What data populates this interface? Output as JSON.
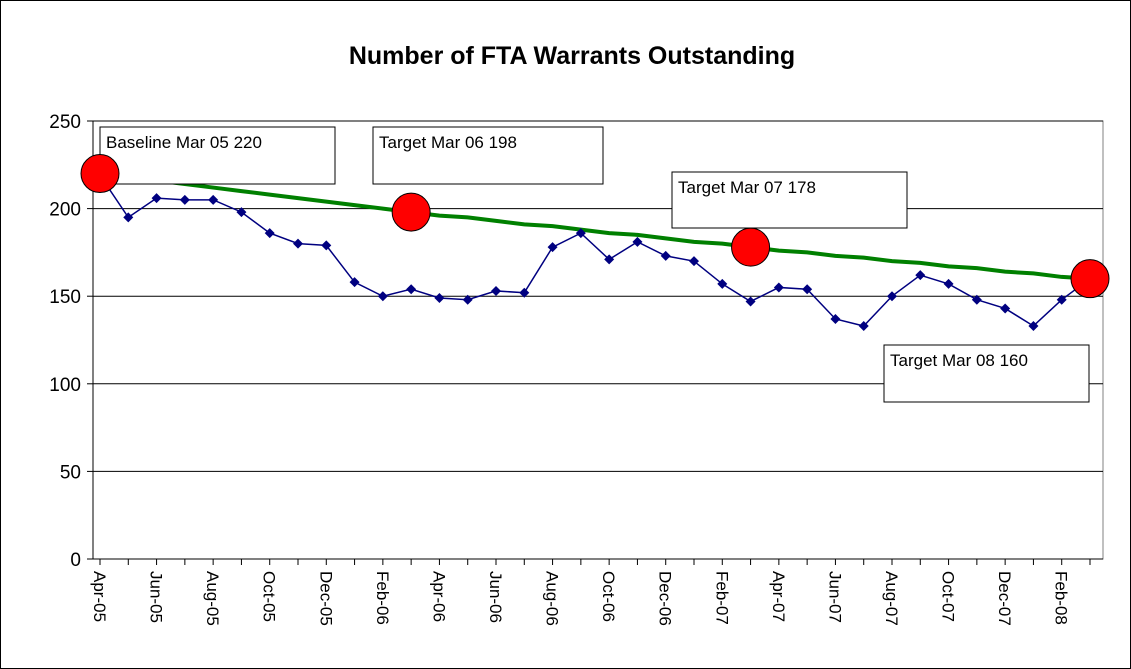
{
  "chart_data": {
    "type": "line",
    "title": "Number of FTA Warrants Outstanding",
    "categories": [
      "Apr-05",
      null,
      "Jun-05",
      null,
      "Aug-05",
      null,
      "Oct-05",
      null,
      "Dec-05",
      null,
      "Feb-06",
      null,
      "Apr-06",
      null,
      "Jun-06",
      null,
      "Aug-06",
      null,
      "Oct-06",
      null,
      "Dec-06",
      null,
      "Feb-07",
      null,
      "Apr-07",
      null,
      "Jun-07",
      null,
      "Aug-07",
      null,
      "Oct-07",
      null,
      "Dec-07",
      null,
      "Feb-08",
      null
    ],
    "series": [
      {
        "name": "Target",
        "color": "#008000",
        "marker": false,
        "values": [
          220,
          218,
          216,
          214,
          212,
          210,
          208,
          206,
          204,
          202,
          200,
          198,
          196,
          195,
          193,
          191,
          190,
          188,
          186,
          185,
          183,
          181,
          180,
          178,
          176,
          175,
          173,
          172,
          170,
          169,
          167,
          166,
          164,
          163,
          161,
          160
        ]
      },
      {
        "name": "Outstanding",
        "color": "#000080",
        "marker": true,
        "values": [
          219,
          195,
          206,
          205,
          205,
          198,
          186,
          180,
          179,
          158,
          150,
          154,
          149,
          148,
          153,
          152,
          178,
          186,
          171,
          181,
          173,
          170,
          157,
          147,
          155,
          154,
          137,
          133,
          150,
          162,
          157,
          148,
          143,
          133,
          148,
          160
        ]
      }
    ],
    "targets": {
      "color": "#ff0000",
      "values": [
        220,
        null,
        null,
        null,
        null,
        null,
        null,
        null,
        null,
        null,
        null,
        198,
        null,
        null,
        null,
        null,
        null,
        null,
        null,
        null,
        null,
        null,
        null,
        178,
        null,
        null,
        null,
        null,
        null,
        null,
        null,
        null,
        null,
        null,
        null,
        160
      ]
    },
    "annotations": [
      "Baseline Mar 05 220",
      "Target Mar 06 198",
      "Target Mar 07 178",
      "Target Mar 08 160"
    ],
    "ylim": [
      0,
      250
    ],
    "yticks": [
      0,
      50,
      100,
      150,
      200,
      250
    ],
    "grid": true
  }
}
